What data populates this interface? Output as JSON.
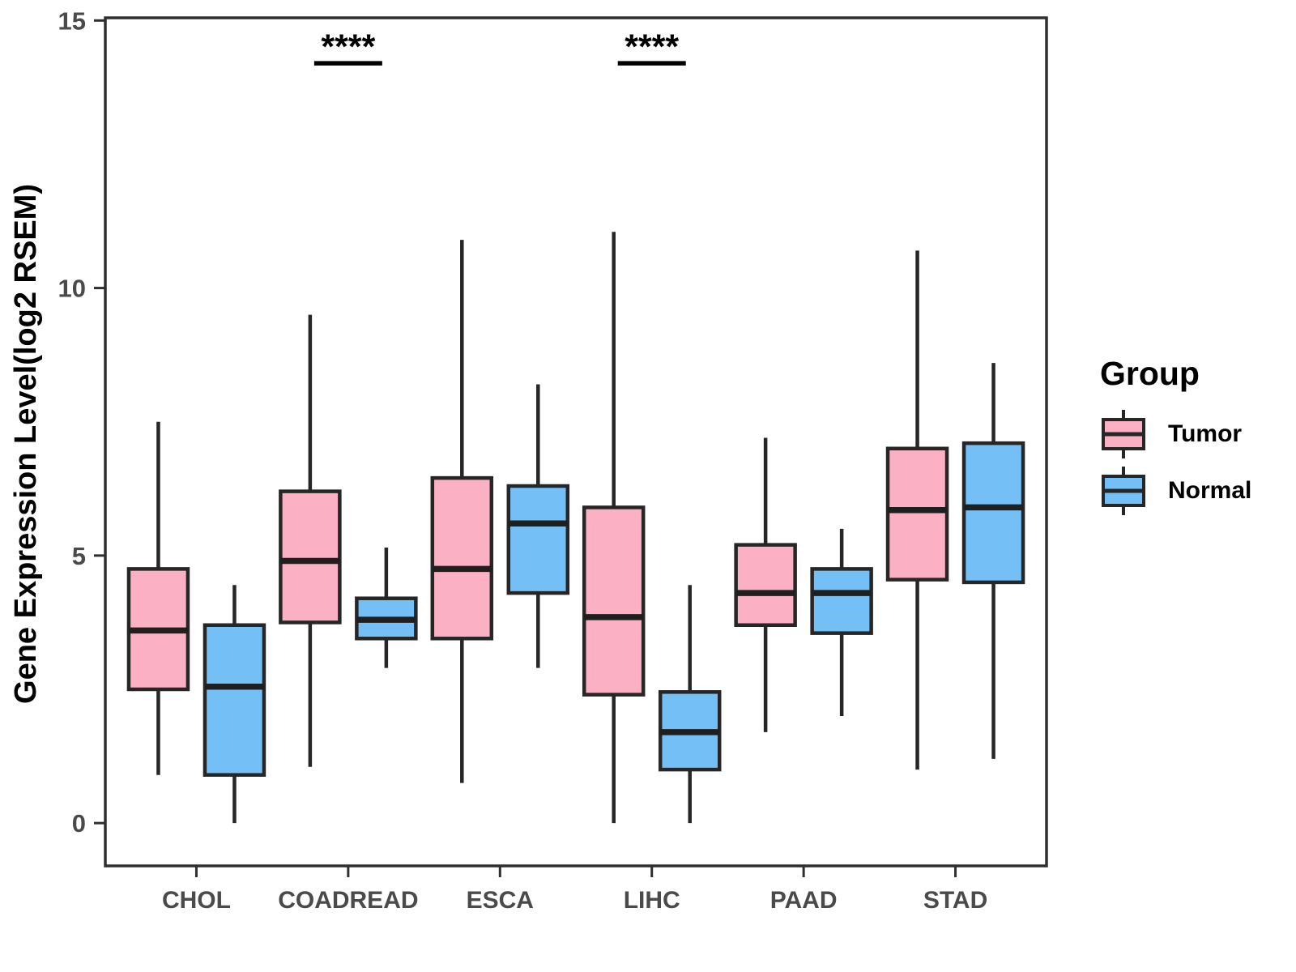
{
  "figure": {
    "legend": {
      "title": "Group",
      "entries": [
        {
          "label": "Tumor",
          "color": "#FBB1C3"
        },
        {
          "label": "Normal",
          "color": "#74C0F6"
        }
      ]
    }
  },
  "chart_data": {
    "type": "box",
    "title": "",
    "xlabel": "",
    "ylabel": "Gene Expression Level(log2 RSEM)",
    "categories": [
      "CHOL",
      "COADREAD",
      "ESCA",
      "LIHC",
      "PAAD",
      "STAD"
    ],
    "y_ticks": [
      0,
      5,
      10,
      15
    ],
    "ylim": [
      -0.8,
      15.05
    ],
    "grid": false,
    "legend_position": "right",
    "series": [
      {
        "name": "Tumor",
        "color": "#FBB1C3",
        "boxes": [
          {
            "category": "CHOL",
            "whisker_low": 0.9,
            "q1": 2.5,
            "median": 3.6,
            "q3": 4.75,
            "whisker_high": 7.5
          },
          {
            "category": "COADREAD",
            "whisker_low": 1.05,
            "q1": 3.75,
            "median": 4.9,
            "q3": 6.2,
            "whisker_high": 9.5
          },
          {
            "category": "ESCA",
            "whisker_low": 0.75,
            "q1": 3.45,
            "median": 4.75,
            "q3": 6.45,
            "whisker_high": 10.9
          },
          {
            "category": "LIHC",
            "whisker_low": 0.0,
            "q1": 2.4,
            "median": 3.85,
            "q3": 5.9,
            "whisker_high": 11.05
          },
          {
            "category": "PAAD",
            "whisker_low": 1.7,
            "q1": 3.7,
            "median": 4.3,
            "q3": 5.2,
            "whisker_high": 7.2
          },
          {
            "category": "STAD",
            "whisker_low": 1.0,
            "q1": 4.55,
            "median": 5.85,
            "q3": 7.0,
            "whisker_high": 10.7
          }
        ]
      },
      {
        "name": "Normal",
        "color": "#74C0F6",
        "boxes": [
          {
            "category": "CHOL",
            "whisker_low": 0.0,
            "q1": 0.9,
            "median": 2.55,
            "q3": 3.7,
            "whisker_high": 4.45
          },
          {
            "category": "COADREAD",
            "whisker_low": 2.9,
            "q1": 3.45,
            "median": 3.8,
            "q3": 4.2,
            "whisker_high": 5.15
          },
          {
            "category": "ESCA",
            "whisker_low": 2.9,
            "q1": 4.3,
            "median": 5.6,
            "q3": 6.3,
            "whisker_high": 8.2
          },
          {
            "category": "LIHC",
            "whisker_low": 0.0,
            "q1": 1.0,
            "median": 1.7,
            "q3": 2.45,
            "whisker_high": 4.45
          },
          {
            "category": "PAAD",
            "whisker_low": 2.0,
            "q1": 3.55,
            "median": 4.3,
            "q3": 4.75,
            "whisker_high": 5.5
          },
          {
            "category": "STAD",
            "whisker_low": 1.2,
            "q1": 4.5,
            "median": 5.9,
            "q3": 7.1,
            "whisker_high": 8.6
          }
        ]
      }
    ],
    "annotations": [
      {
        "category": "COADREAD",
        "label": "****"
      },
      {
        "category": "LIHC",
        "label": "****"
      }
    ]
  },
  "style": {
    "box_border": "#262626",
    "median_color": "#1f1f1f",
    "axis_color": "#2f2f2f",
    "tick_label_color": "#4a4a4a",
    "title_color": "#000000"
  }
}
